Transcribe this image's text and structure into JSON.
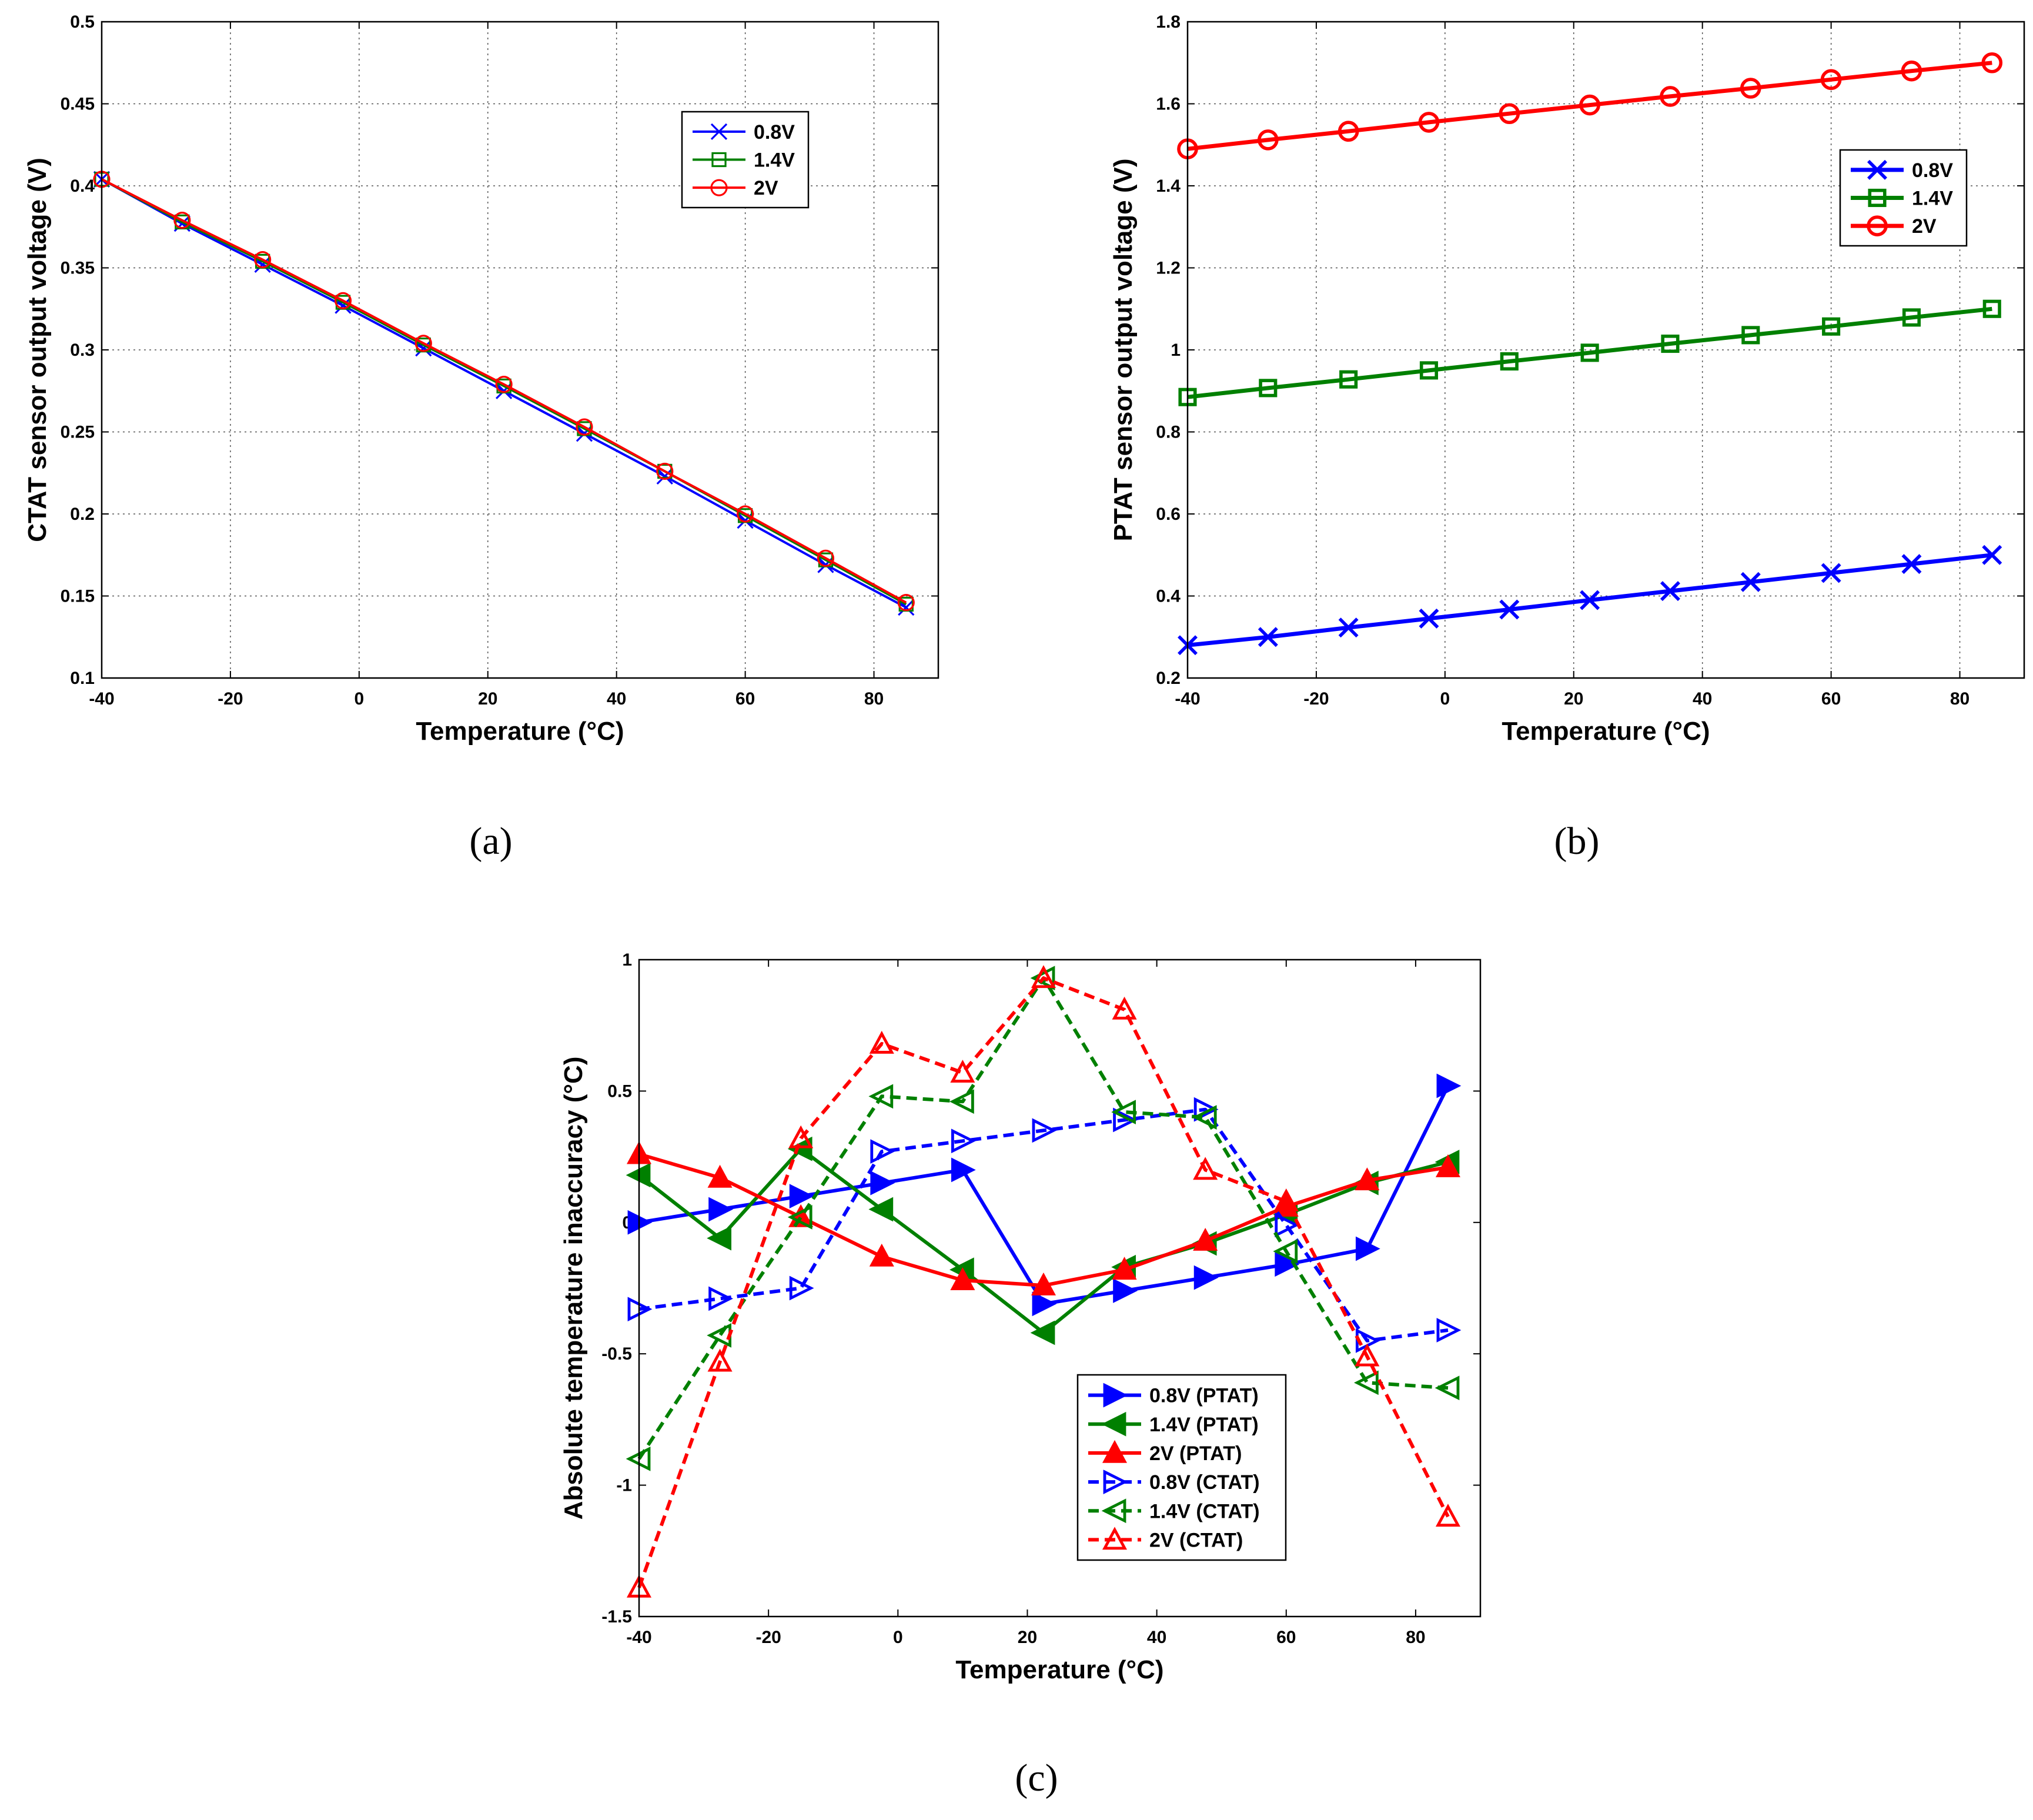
{
  "chart_data": [
    {
      "id": "a",
      "type": "line",
      "caption": "(a)",
      "xlabel": "Temperature (°C)",
      "ylabel": "CTAT sensor output voltage (V)",
      "xlim": [
        -40,
        90
      ],
      "ylim": [
        0.1,
        0.5
      ],
      "xticks": [
        -40,
        -20,
        0,
        20,
        40,
        60,
        80
      ],
      "yticks": [
        0.1,
        0.15,
        0.2,
        0.25,
        0.3,
        0.35,
        0.4,
        0.45,
        0.5
      ],
      "ytick_labels": [
        "0.1",
        "0.15",
        "0.2",
        "0.25",
        "0.3",
        "0.35",
        "0.4",
        "0.45",
        "0.5"
      ],
      "grid": true,
      "legend": "upper-right",
      "x": [
        -40,
        -27.5,
        -15,
        -2.5,
        10,
        22.5,
        35,
        47.5,
        60,
        72.5,
        85
      ],
      "series": [
        {
          "name": "0.8V",
          "color": "#0000ff",
          "marker": "x",
          "values": [
            0.404,
            0.377,
            0.352,
            0.327,
            0.301,
            0.275,
            0.249,
            0.223,
            0.196,
            0.169,
            0.143
          ]
        },
        {
          "name": "1.4V",
          "color": "#008000",
          "marker": "square",
          "values": [
            0.404,
            0.378,
            0.354,
            0.329,
            0.303,
            0.278,
            0.252,
            0.226,
            0.199,
            0.172,
            0.145
          ]
        },
        {
          "name": "2V",
          "color": "#ff0000",
          "marker": "circle",
          "values": [
            0.404,
            0.379,
            0.355,
            0.33,
            0.304,
            0.279,
            0.253,
            0.226,
            0.2,
            0.173,
            0.146
          ]
        }
      ]
    },
    {
      "id": "b",
      "type": "line",
      "caption": "(b)",
      "xlabel": "Temperature (°C)",
      "ylabel": "PTAT sensor output voltage (V)",
      "xlim": [
        -40,
        90
      ],
      "ylim": [
        0.2,
        1.8
      ],
      "xticks": [
        -40,
        -20,
        0,
        20,
        40,
        60,
        80
      ],
      "yticks": [
        0.2,
        0.4,
        0.6,
        0.8,
        1.0,
        1.2,
        1.4,
        1.6,
        1.8
      ],
      "ytick_labels": [
        "0.2",
        "0.4",
        "0.6",
        "0.8",
        "1",
        "1.2",
        "1.4",
        "1.6",
        "1.8"
      ],
      "grid": true,
      "legend": "right",
      "x": [
        -40,
        -27.5,
        -15,
        -2.5,
        10,
        22.5,
        35,
        47.5,
        60,
        72.5,
        85
      ],
      "series": [
        {
          "name": "0.8V",
          "color": "#0000ff",
          "marker": "x",
          "values": [
            0.28,
            0.3,
            0.323,
            0.345,
            0.367,
            0.39,
            0.412,
            0.434,
            0.456,
            0.478,
            0.5
          ]
        },
        {
          "name": "1.4V",
          "color": "#008000",
          "marker": "square",
          "values": [
            0.885,
            0.907,
            0.928,
            0.95,
            0.972,
            0.993,
            1.015,
            1.036,
            1.057,
            1.079,
            1.1
          ]
        },
        {
          "name": "2V",
          "color": "#ff0000",
          "marker": "circle",
          "values": [
            1.49,
            1.512,
            1.533,
            1.555,
            1.576,
            1.597,
            1.618,
            1.638,
            1.659,
            1.68,
            1.7
          ]
        }
      ]
    },
    {
      "id": "c",
      "type": "line",
      "caption": "(c)",
      "xlabel": "Temperature (°C)",
      "ylabel": "Absolute temperature inaccuracy (°C)",
      "xlim": [
        -40,
        90
      ],
      "ylim": [
        -1.5,
        1
      ],
      "xticks": [
        -40,
        -20,
        0,
        20,
        40,
        60,
        80
      ],
      "yticks": [
        -1.5,
        -1,
        -0.5,
        0,
        0.5,
        1
      ],
      "ytick_labels": [
        "-1.5",
        "-1",
        "-0.5",
        "0",
        "0.5",
        "1"
      ],
      "grid": false,
      "legend": "lower-center",
      "x": [
        -40,
        -27.5,
        -15,
        -2.5,
        10,
        22.5,
        35,
        47.5,
        60,
        72.5,
        85
      ],
      "series": [
        {
          "name": "0.8V (PTAT)",
          "color": "#0000ff",
          "marker": "triangle-right",
          "dashed": false,
          "filled": true,
          "values": [
            0.0,
            0.05,
            0.1,
            0.15,
            0.2,
            -0.31,
            -0.26,
            -0.21,
            -0.16,
            -0.1,
            0.52
          ]
        },
        {
          "name": "1.4V (PTAT)",
          "color": "#008000",
          "marker": "triangle-left",
          "dashed": false,
          "filled": true,
          "values": [
            0.18,
            -0.06,
            0.28,
            0.05,
            -0.18,
            -0.42,
            -0.17,
            -0.08,
            0.03,
            0.15,
            0.23
          ]
        },
        {
          "name": "2V (PTAT)",
          "color": "#ff0000",
          "marker": "triangle-up",
          "dashed": false,
          "filled": true,
          "values": [
            0.26,
            0.17,
            0.02,
            -0.13,
            -0.22,
            -0.24,
            -0.18,
            -0.07,
            0.06,
            0.16,
            0.21
          ]
        },
        {
          "name": "0.8V (CTAT)",
          "color": "#0000ff",
          "marker": "triangle-right",
          "dashed": true,
          "filled": false,
          "values": [
            -0.33,
            -0.29,
            -0.25,
            0.27,
            0.31,
            0.35,
            0.39,
            0.43,
            -0.01,
            -0.45,
            -0.41
          ]
        },
        {
          "name": "1.4V (CTAT)",
          "color": "#008000",
          "marker": "triangle-left",
          "dashed": true,
          "filled": false,
          "values": [
            -0.9,
            -0.43,
            0.02,
            0.48,
            0.46,
            0.93,
            0.42,
            0.4,
            -0.11,
            -0.61,
            -0.63
          ]
        },
        {
          "name": "2V (CTAT)",
          "color": "#ff0000",
          "marker": "triangle-up",
          "dashed": true,
          "filled": false,
          "values": [
            -1.39,
            -0.53,
            0.32,
            0.68,
            0.57,
            0.93,
            0.81,
            0.2,
            0.08,
            -0.51,
            -1.12
          ]
        }
      ]
    }
  ]
}
